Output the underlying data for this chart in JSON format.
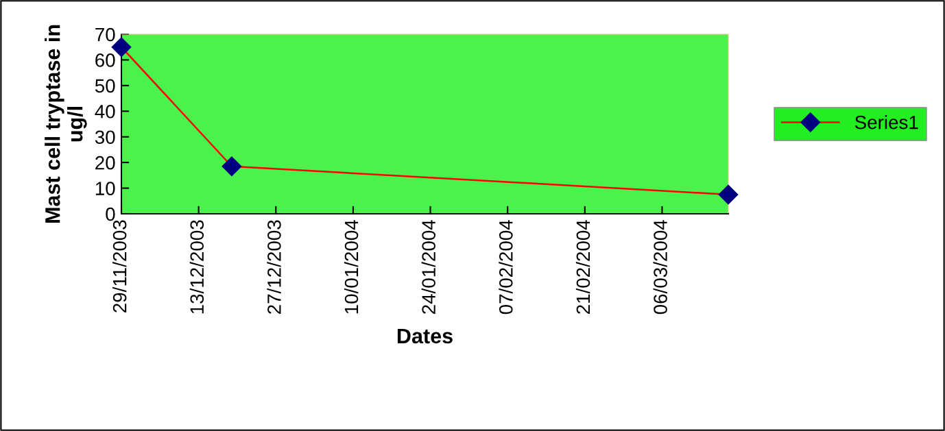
{
  "chart_data": {
    "type": "line",
    "xlabel": "Dates",
    "ylabel": "Mast cell tryptase in ug/l",
    "x": [
      "2003-11-29",
      "2003-12-19",
      "2004-03-18"
    ],
    "series": [
      {
        "name": "Series1",
        "color": "#ff0000",
        "values": [
          65,
          18.5,
          7.5
        ]
      }
    ],
    "xlim": [
      "2003-11-29",
      "2004-03-18"
    ],
    "xticks": [
      {
        "value": "2003-11-29",
        "label": "29/11/2003"
      },
      {
        "value": "2003-12-13",
        "label": "13/12/2003"
      },
      {
        "value": "2003-12-27",
        "label": "27/12/2003"
      },
      {
        "value": "2004-01-10",
        "label": "10/01/2004"
      },
      {
        "value": "2004-01-24",
        "label": "24/01/2004"
      },
      {
        "value": "2004-02-07",
        "label": "07/02/2004"
      },
      {
        "value": "2004-02-21",
        "label": "21/02/2004"
      },
      {
        "value": "2004-03-06",
        "label": "06/03/2004"
      }
    ],
    "ylim": [
      0,
      70
    ],
    "yticks": [
      0,
      10,
      20,
      30,
      40,
      50,
      60,
      70
    ],
    "grid": false,
    "legend": "right",
    "marker": "diamond",
    "line_style": "solid"
  }
}
